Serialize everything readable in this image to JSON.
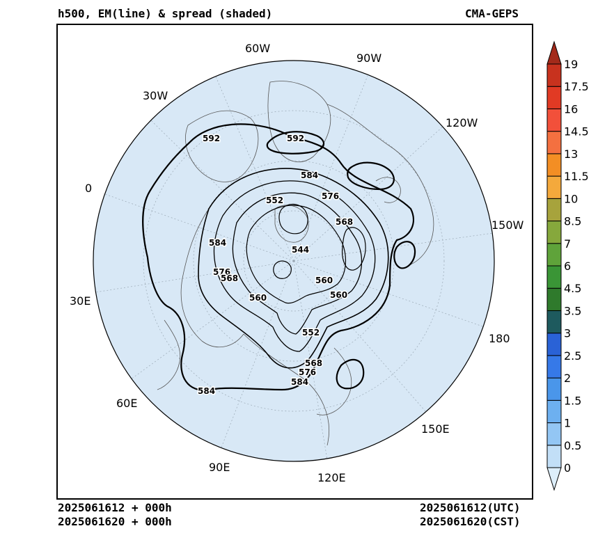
{
  "header": {
    "title_left": "h500, EM(line) & spread (shaded)",
    "title_right": "CMA-GEPS"
  },
  "footer": {
    "left_line1": "2025061612 + 000h",
    "left_line2": "2025061620 + 000h",
    "right_line1": "2025061612(UTC)",
    "right_line2": "2025061620(CST)"
  },
  "map": {
    "projection": "north polar stereographic",
    "ocean_fill": "#d8e8f6",
    "longitude_labels": [
      "60W",
      "90W",
      "30W",
      "120W",
      "0",
      "150W",
      "30E",
      "180",
      "60E",
      "150E",
      "90E",
      "120E"
    ],
    "contour_labels": [
      "592",
      "592",
      "584",
      "576",
      "552",
      "568",
      "584",
      "544",
      "576",
      "568",
      "560",
      "560",
      "560",
      "552",
      "568",
      "576",
      "584",
      "584"
    ]
  },
  "colorbar": {
    "labels": [
      "19",
      "17.5",
      "16",
      "14.5",
      "13",
      "11.5",
      "10",
      "8.5",
      "7",
      "6",
      "4.5",
      "3.5",
      "3",
      "2.5",
      "2",
      "1.5",
      "1",
      "0.5",
      "0"
    ],
    "colors_bottom_to_top": [
      "#ddeefa",
      "#c2dff7",
      "#93c6f4",
      "#6db0f0",
      "#4a96ea",
      "#3679e8",
      "#2a62d6",
      "#1e5a5e",
      "#2f7a2c",
      "#3a9536",
      "#5fa33a",
      "#86a83c",
      "#a7a33c",
      "#f4a93c",
      "#f38e24",
      "#f47040",
      "#f2503a",
      "#e13a24",
      "#c8321e",
      "#a32a1a"
    ]
  }
}
